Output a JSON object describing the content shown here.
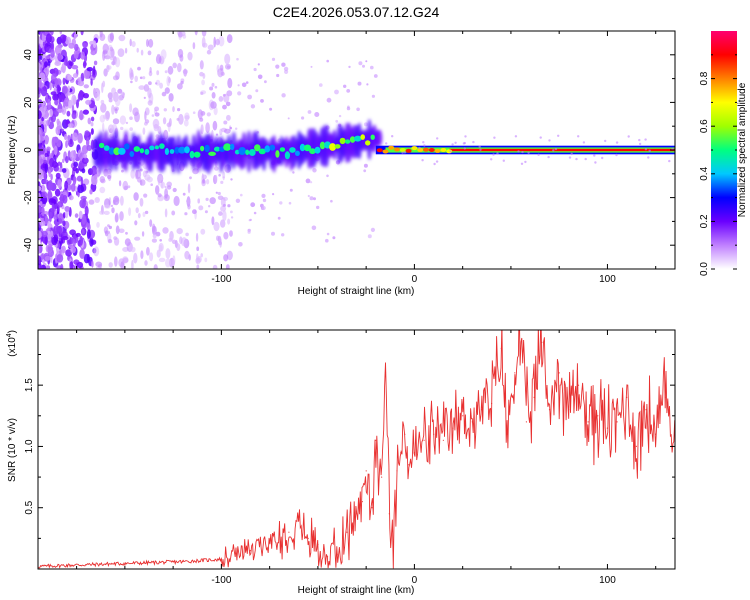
{
  "title": "C2E4.2026.053.07.12.G24",
  "chart_data": [
    {
      "type": "heatmap",
      "name": "spectrogram",
      "xlabel": "Height of straight line (km)",
      "ylabel": "Frequency (Hz)",
      "xlim": [
        -195,
        135
      ],
      "ylim": [
        -50,
        50
      ],
      "xticks": [
        -100,
        0,
        100
      ],
      "yticks": [
        -40,
        -20,
        0,
        20,
        40
      ],
      "colorbar": {
        "label": "Normalized spectral amplitude",
        "range": [
          0,
          1
        ],
        "ticks": [
          "0.0",
          "0.2",
          "0.4",
          "0.6",
          "0.8"
        ],
        "colors": [
          "#ffffff",
          "#c080ff",
          "#6a00ff",
          "#0000ff",
          "#00c8ff",
          "#00ff80",
          "#a0ff00",
          "#ffff00",
          "#ff8000",
          "#ff0000",
          "#ff0070"
        ]
      },
      "features": [
        {
          "x_range": [
            -195,
            -165
          ],
          "freq_range": [
            -50,
            50
          ],
          "amplitude": 0.15,
          "description_level": "dense noise"
        },
        {
          "x_range": [
            -165,
            -20
          ],
          "center_freq": 0,
          "amplitude": 0.5
        },
        {
          "x_range": [
            -20,
            135
          ],
          "center_freq": 0,
          "amplitude": 0.9
        }
      ]
    },
    {
      "type": "line",
      "name": "snr",
      "xlabel": "Height of straight line (km)",
      "ylabel": "SNR (10 * v/v)",
      "multiplier": "(x10",
      "multiplier_exp": "4",
      "xlim": [
        -195,
        135
      ],
      "ylim": [
        0,
        1.95
      ],
      "xticks": [
        -100,
        0,
        100
      ],
      "yticks": [
        0.5,
        1.0,
        1.5
      ],
      "ytick_labels": [
        "0.5",
        "1.0",
        "1.5"
      ],
      "color": "#e83030",
      "x": [
        -195,
        -180,
        -160,
        -140,
        -120,
        -100,
        -85,
        -75,
        -65,
        -60,
        -55,
        -50,
        -45,
        -40,
        -35,
        -30,
        -27,
        -25,
        -22,
        -20,
        -17,
        -15,
        -13,
        -11,
        -9,
        -7,
        -5,
        -3,
        0,
        5,
        10,
        15,
        20,
        25,
        30,
        35,
        40,
        42,
        45,
        48,
        52,
        55,
        58,
        62,
        66,
        70,
        75,
        80,
        85,
        90,
        95,
        100,
        105,
        110,
        115,
        120,
        125,
        130,
        135
      ],
      "y": [
        0.02,
        0.03,
        0.04,
        0.05,
        0.06,
        0.08,
        0.15,
        0.22,
        0.3,
        0.4,
        0.25,
        0.2,
        0.1,
        0.12,
        0.3,
        0.45,
        0.55,
        0.8,
        0.5,
        1.05,
        0.75,
        1.6,
        0.45,
        0.15,
        0.8,
        0.95,
        1.1,
        0.85,
        0.95,
        1.05,
        1.1,
        1.05,
        1.15,
        1.25,
        1.2,
        1.3,
        1.35,
        1.5,
        1.8,
        1.1,
        1.6,
        1.95,
        1.2,
        1.4,
        1.85,
        1.3,
        1.6,
        1.3,
        1.5,
        1.2,
        1.25,
        1.15,
        1.2,
        1.4,
        1.0,
        1.3,
        1.1,
        1.4,
        1.1
      ]
    }
  ]
}
